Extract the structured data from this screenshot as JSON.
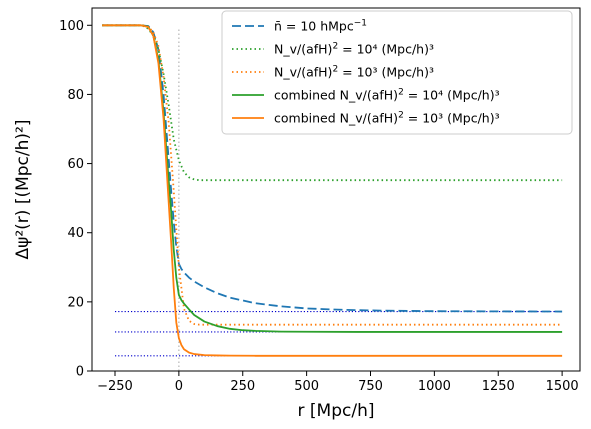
{
  "chart_data": {
    "type": "line",
    "xlabel": "r [Mpc/h]",
    "ylabel": "Δψ²(r) [(Mpc/h)²]",
    "xlim": [
      -340,
      1570
    ],
    "ylim": [
      0,
      105
    ],
    "xticks": [
      -250,
      0,
      250,
      500,
      750,
      1000,
      1250,
      1500
    ],
    "yticks": [
      0,
      20,
      40,
      60,
      80,
      100
    ],
    "grid": false,
    "legend_position": "top-right",
    "vertical_reference": {
      "x": 0,
      "y_range": [
        0,
        99
      ],
      "color": "#bbbbbb",
      "style": "dotted"
    },
    "horizontal_reference": [
      {
        "y": 17.2,
        "x_range": [
          -250,
          1500
        ],
        "color": "#0000cc",
        "style": "dotted"
      },
      {
        "y": 11.3,
        "x_range": [
          -250,
          1500
        ],
        "color": "#0000cc",
        "style": "dotted"
      },
      {
        "y": 4.4,
        "x_range": [
          -250,
          1500
        ],
        "color": "#0000cc",
        "style": "dotted"
      }
    ],
    "series": [
      {
        "name": "n̄ = 10 hMpc⁻¹",
        "legend": {
          "main": "n̄ = 10 hMpc",
          "sup": "−1",
          "post": ""
        },
        "color": "#1f77b4",
        "style": "dashed",
        "x": [
          -300,
          -150,
          -120,
          -100,
          -80,
          -60,
          -45,
          -30,
          -20,
          -10,
          0,
          10,
          20,
          40,
          60,
          100,
          150,
          200,
          300,
          400,
          500,
          600,
          700,
          800,
          1000,
          1200,
          1500
        ],
        "y": [
          100,
          100,
          99.8,
          98,
          93,
          80,
          66,
          52,
          43,
          36,
          31,
          29.5,
          28.5,
          27,
          25.9,
          24.2,
          22.5,
          21.2,
          19.6,
          18.7,
          18.1,
          17.8,
          17.6,
          17.45,
          17.3,
          17.25,
          17.2
        ]
      },
      {
        "name": "N_v/(afH)² = 10⁴ (Mpc/h)³",
        "legend": {
          "main": "N_v/(afH)",
          "sup": "2",
          "post": " = 10⁴ (Mpc/h)³"
        },
        "color": "#2ca02c",
        "style": "dotted",
        "x": [
          -300,
          -160,
          -140,
          -120,
          -100,
          -80,
          -60,
          -40,
          -20,
          0,
          20,
          40,
          60,
          80,
          100,
          1500
        ],
        "y": [
          100,
          100,
          99.8,
          99,
          97,
          93,
          86,
          77,
          67,
          61,
          57.5,
          56,
          55.4,
          55.2,
          55.2,
          55.2
        ]
      },
      {
        "name": "N_v/(afH)² = 10³ (Mpc/h)³",
        "legend": {
          "main": "N_v/(afH)",
          "sup": "2",
          "post": " = 10³ (Mpc/h)³"
        },
        "color": "#ff7f0e",
        "style": "dotted",
        "x": [
          -300,
          -140,
          -120,
          -100,
          -80,
          -60,
          -40,
          -20,
          0,
          20,
          40,
          60,
          80,
          1500
        ],
        "y": [
          100,
          100,
          99.6,
          98,
          94,
          85,
          72,
          52,
          30,
          18,
          14.5,
          13.6,
          13.4,
          13.4
        ]
      },
      {
        "name": "combined N_v/(afH)² = 10⁴ (Mpc/h)³",
        "legend": {
          "main": "combined N_v/(afH)",
          "sup": "2",
          "post": " = 10⁴ (Mpc/h)³"
        },
        "color": "#2ca02c",
        "style": "solid",
        "x": [
          -300,
          -150,
          -120,
          -100,
          -80,
          -60,
          -45,
          -30,
          -20,
          -10,
          0,
          10,
          20,
          40,
          60,
          100,
          150,
          200,
          250,
          300,
          400,
          500,
          700,
          1000,
          1500
        ],
        "y": [
          100,
          100,
          99.6,
          97,
          90,
          75,
          60,
          46,
          35,
          27,
          22,
          20.5,
          19.5,
          17.8,
          16.2,
          14.3,
          13,
          12.2,
          11.8,
          11.6,
          11.4,
          11.35,
          11.3,
          11.3,
          11.3
        ]
      },
      {
        "name": "combined N_v/(afH)² = 10³ (Mpc/h)³",
        "legend": {
          "main": "combined N_v/(afH)",
          "sup": "2",
          "post": " = 10³ (Mpc/h)³"
        },
        "color": "#ff7f0e",
        "style": "solid",
        "x": [
          -300,
          -150,
          -120,
          -100,
          -80,
          -60,
          -45,
          -30,
          -20,
          -10,
          0,
          10,
          20,
          40,
          60,
          100,
          150,
          200,
          300,
          500,
          1500
        ],
        "y": [
          100,
          100,
          99.5,
          97,
          89,
          73,
          55,
          37,
          24,
          14,
          9.5,
          7.5,
          6.3,
          5.3,
          4.9,
          4.6,
          4.5,
          4.45,
          4.4,
          4.4,
          4.4
        ]
      }
    ]
  }
}
